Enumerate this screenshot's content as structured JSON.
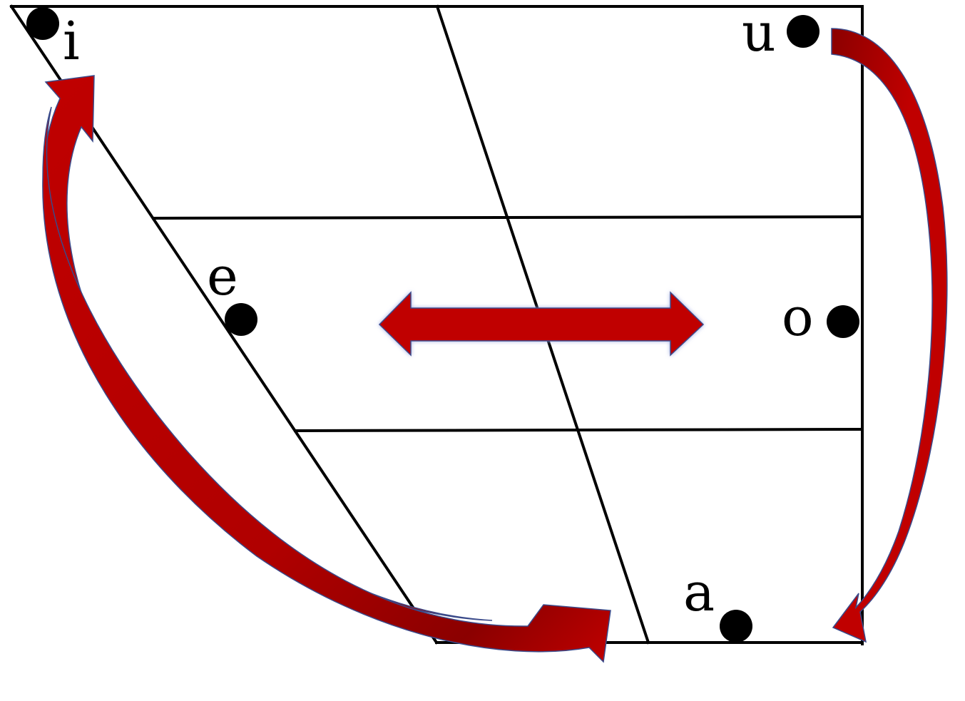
{
  "diagram": {
    "kind": "vowel-quadrilateral",
    "colors": {
      "arrow_fill": "#c00000",
      "arrow_dark": "#8b0000",
      "arrow_outline": "#3a4a8a",
      "arrow_glow": "#9aa4e0",
      "line": "#000000"
    },
    "vowels": [
      {
        "symbol": "i"
      },
      {
        "symbol": "u"
      },
      {
        "symbol": "e"
      },
      {
        "symbol": "o"
      },
      {
        "symbol": "a"
      }
    ],
    "arrows": [
      {
        "from": "a",
        "to": "i",
        "style": "curved"
      },
      {
        "from": "i",
        "to": "a",
        "style": "curved"
      },
      {
        "from": "u",
        "to": "a",
        "style": "curved"
      },
      {
        "between": [
          "e",
          "o"
        ],
        "style": "double-headed"
      }
    ]
  }
}
